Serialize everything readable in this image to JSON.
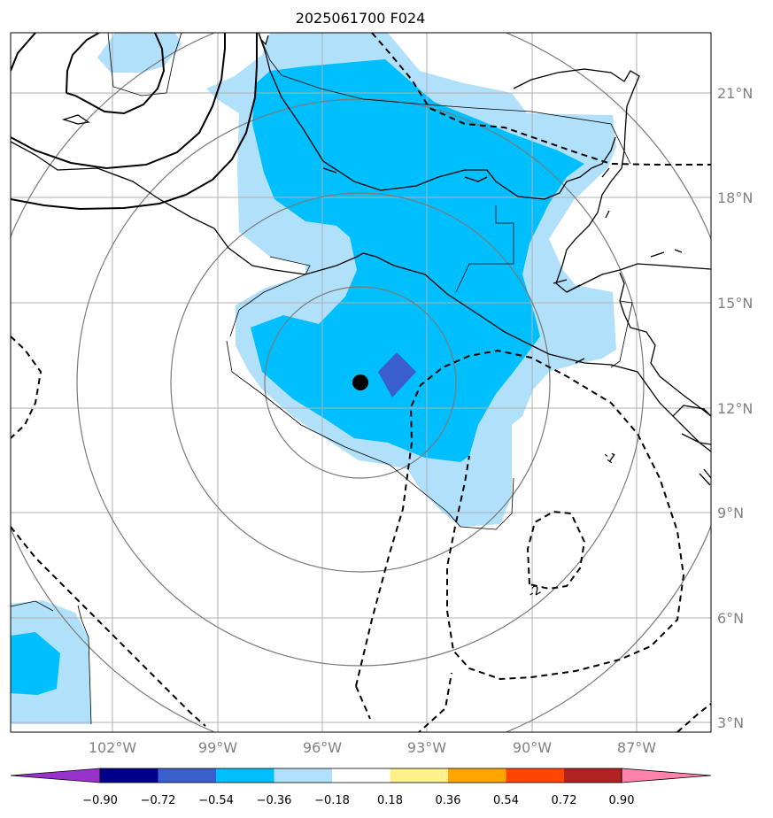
{
  "title": "2025061700 F024",
  "lat_labels": [
    "21°N",
    "18°N",
    "15°N",
    "12°N",
    "9°N",
    "6°N",
    "3°N"
  ],
  "lon_labels": [
    "102°W",
    "99°W",
    "96°W",
    "93°W",
    "90°W",
    "87°W"
  ],
  "contour_labels": [
    "-1",
    "-2"
  ],
  "colorbar": {
    "tick_labels": [
      "−0.90",
      "−0.72",
      "−0.54",
      "−0.36",
      "−0.18",
      "0.18",
      "0.36",
      "0.54",
      "0.72",
      "0.90"
    ],
    "colors": [
      "#9932cc",
      "#00008b",
      "#3a5fcd",
      "#00bfff",
      "#b0e0fa",
      "#ffffff",
      "#fff08c",
      "#ffa500",
      "#ff4500",
      "#b22222",
      "#ff82ab"
    ]
  },
  "fill_colors": {
    "light": "#b0e0fa",
    "medium": "#00bfff",
    "dark": "#3a5fcd"
  }
}
